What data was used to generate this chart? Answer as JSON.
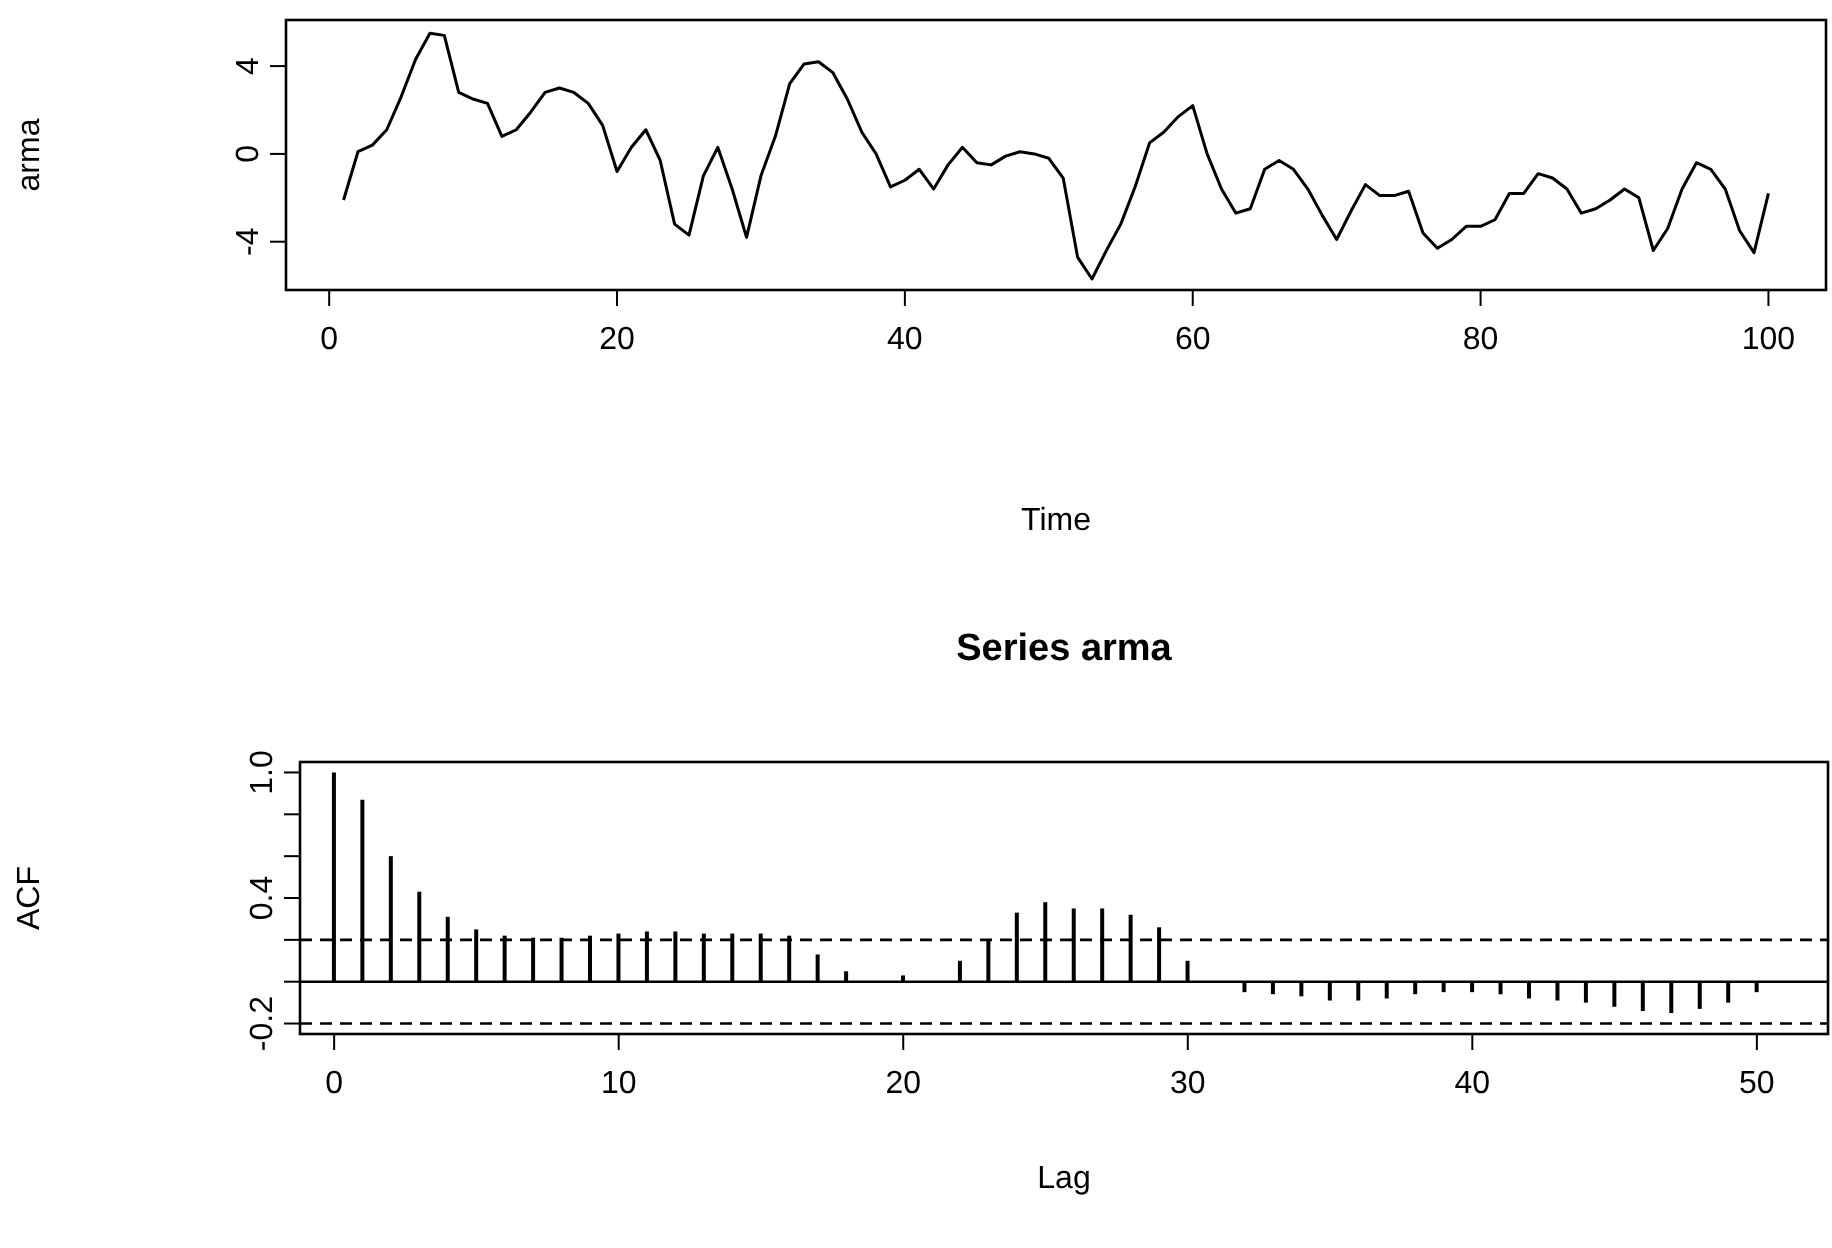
{
  "chart_data": [
    {
      "type": "line",
      "xlabel": "Time",
      "ylabel": "arma",
      "x": [
        1,
        2,
        3,
        4,
        5,
        6,
        7,
        8,
        9,
        10,
        11,
        12,
        13,
        14,
        15,
        16,
        17,
        18,
        19,
        20,
        21,
        22,
        23,
        24,
        25,
        26,
        27,
        28,
        29,
        30,
        31,
        32,
        33,
        34,
        35,
        36,
        37,
        38,
        39,
        40,
        41,
        42,
        43,
        44,
        45,
        46,
        47,
        48,
        49,
        50,
        51,
        52,
        53,
        54,
        55,
        56,
        57,
        58,
        59,
        60,
        61,
        62,
        63,
        64,
        65,
        66,
        67,
        68,
        69,
        70,
        71,
        72,
        73,
        74,
        75,
        76,
        77,
        78,
        79,
        80,
        81,
        82,
        83,
        84,
        85,
        86,
        87,
        88,
        89,
        90,
        91,
        92,
        93,
        94,
        95,
        96,
        97,
        98,
        99,
        100
      ],
      "series": [
        {
          "color": "#000000",
          "values": [
            -2.1,
            0.1,
            0.4,
            1.1,
            2.6,
            4.3,
            5.5,
            5.4,
            2.8,
            2.5,
            2.3,
            0.8,
            1.1,
            1.9,
            2.8,
            3.0,
            2.8,
            2.3,
            1.3,
            -0.8,
            0.3,
            1.1,
            -0.3,
            -3.2,
            -3.7,
            -1.0,
            0.3,
            -1.6,
            -3.8,
            -1.0,
            0.8,
            3.2,
            4.1,
            4.2,
            3.7,
            2.5,
            1.0,
            0.0,
            -1.5,
            -1.2,
            -0.7,
            -1.6,
            -0.5,
            0.3,
            -0.4,
            -0.5,
            -0.1,
            0.1,
            0.0,
            -0.2,
            -1.1,
            -4.7,
            -5.7,
            -4.4,
            -3.2,
            -1.5,
            0.5,
            1.0,
            1.7,
            2.2,
            0.0,
            -1.6,
            -2.7,
            -2.5,
            -0.7,
            -0.3,
            -0.7,
            -1.6,
            -2.8,
            -3.9,
            -2.6,
            -1.4,
            -1.9,
            -1.9,
            -1.7,
            -3.6,
            -4.3,
            -3.9,
            -3.3,
            -3.3,
            -3.0,
            -1.8,
            -1.8,
            -0.9,
            -1.1,
            -1.6,
            -2.7,
            -2.5,
            -2.1,
            -1.6,
            -2.0,
            -4.4,
            -3.4,
            -1.6,
            -0.4,
            -0.7,
            -1.6,
            -3.5,
            -4.5,
            -1.8
          ]
        }
      ],
      "xlim": [
        -3,
        104
      ],
      "xticks": [
        0,
        20,
        40,
        60,
        80,
        100
      ],
      "ylim": [
        -6.2,
        6.1
      ],
      "yticks": [
        -4,
        0,
        4
      ]
    },
    {
      "type": "bar",
      "title": "Series arma",
      "xlabel": "Lag",
      "ylabel": "ACF",
      "x": [
        0,
        1,
        2,
        3,
        4,
        5,
        6,
        7,
        8,
        9,
        10,
        11,
        12,
        13,
        14,
        15,
        16,
        17,
        18,
        19,
        20,
        21,
        22,
        23,
        24,
        25,
        26,
        27,
        28,
        29,
        30,
        31,
        32,
        33,
        34,
        35,
        36,
        37,
        38,
        39,
        40,
        41,
        42,
        43,
        44,
        45,
        46,
        47,
        48,
        49,
        50
      ],
      "series": [
        {
          "color": "#000000",
          "values": [
            1.0,
            0.87,
            0.6,
            0.43,
            0.31,
            0.25,
            0.22,
            0.21,
            0.21,
            0.22,
            0.23,
            0.24,
            0.24,
            0.23,
            0.23,
            0.23,
            0.22,
            0.13,
            0.05,
            0.0,
            0.03,
            0.0,
            0.1,
            0.2,
            0.33,
            0.38,
            0.35,
            0.35,
            0.32,
            0.26,
            0.1,
            0.0,
            -0.05,
            -0.06,
            -0.07,
            -0.09,
            -0.09,
            -0.08,
            -0.06,
            -0.05,
            -0.05,
            -0.06,
            -0.08,
            -0.09,
            -0.1,
            -0.12,
            -0.14,
            -0.15,
            -0.13,
            -0.1,
            -0.05
          ]
        }
      ],
      "ref_lines": [
        {
          "axis": "y",
          "value": 0,
          "line_style": "solid",
          "color": "#000000"
        },
        {
          "axis": "y",
          "value": 0.2,
          "line_style": "dashed",
          "color": "#000000"
        },
        {
          "axis": "y",
          "value": -0.2,
          "line_style": "dashed",
          "color": "#000000"
        }
      ],
      "xlim": [
        -1.2,
        52.5
      ],
      "xticks": [
        0,
        10,
        20,
        30,
        40,
        50
      ],
      "ylim": [
        -0.25,
        1.05
      ],
      "yticks": [
        {
          "value": -0.2,
          "label": "-0.2"
        },
        {
          "value": 0,
          "label": null
        },
        {
          "value": 0.2,
          "label": null
        },
        {
          "value": 0.4,
          "label": "0.4"
        },
        {
          "value": 0.6,
          "label": null
        },
        {
          "value": 0.8,
          "label": null
        },
        {
          "value": 1.0,
          "label": "1.0"
        }
      ]
    }
  ]
}
